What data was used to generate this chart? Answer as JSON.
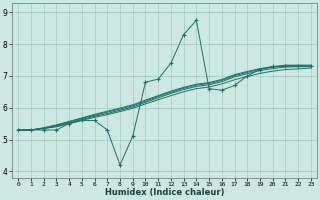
{
  "xlabel": "Humidex (Indice chaleur)",
  "bg_color": "#cce8e0",
  "grid_color": "#aad0c8",
  "line_color": "#1a7068",
  "xlim": [
    -0.5,
    23.5
  ],
  "ylim": [
    3.8,
    9.3
  ],
  "xticks": [
    0,
    1,
    2,
    3,
    4,
    5,
    6,
    7,
    8,
    9,
    10,
    11,
    12,
    13,
    14,
    15,
    16,
    17,
    18,
    19,
    20,
    21,
    22,
    23
  ],
  "yticks": [
    4,
    5,
    6,
    7,
    8,
    9
  ],
  "jagged_x": [
    0,
    1,
    2,
    3,
    4,
    5,
    6,
    7,
    8,
    9,
    10,
    11,
    12,
    13,
    14,
    15,
    16,
    17,
    18,
    19,
    20,
    21,
    22,
    23
  ],
  "jagged_y": [
    5.3,
    5.3,
    5.3,
    5.3,
    5.5,
    5.6,
    5.6,
    5.3,
    4.2,
    5.1,
    6.8,
    6.9,
    7.4,
    8.3,
    8.75,
    6.6,
    6.55,
    6.7,
    7.0,
    7.2,
    7.3,
    7.3,
    7.3,
    7.3
  ],
  "smooth_lines": [
    [
      5.3,
      5.3,
      5.35,
      5.4,
      5.5,
      5.6,
      5.7,
      5.78,
      5.88,
      5.98,
      6.12,
      6.25,
      6.38,
      6.5,
      6.6,
      6.65,
      6.75,
      6.88,
      6.98,
      7.08,
      7.15,
      7.2,
      7.22,
      7.25
    ],
    [
      5.3,
      5.3,
      5.34,
      5.42,
      5.52,
      5.63,
      5.73,
      5.82,
      5.92,
      6.02,
      6.17,
      6.31,
      6.45,
      6.57,
      6.67,
      6.72,
      6.82,
      6.97,
      7.07,
      7.17,
      7.23,
      7.28,
      7.29,
      7.29
    ],
    [
      5.3,
      5.3,
      5.36,
      5.44,
      5.55,
      5.66,
      5.76,
      5.86,
      5.96,
      6.06,
      6.21,
      6.35,
      6.49,
      6.61,
      6.71,
      6.76,
      6.86,
      7.01,
      7.11,
      7.21,
      7.27,
      7.32,
      7.32,
      7.32
    ],
    [
      5.3,
      5.3,
      5.37,
      5.46,
      5.57,
      5.68,
      5.79,
      5.89,
      5.99,
      6.09,
      6.24,
      6.38,
      6.52,
      6.64,
      6.74,
      6.79,
      6.89,
      7.04,
      7.14,
      7.23,
      7.29,
      7.34,
      7.34,
      7.34
    ]
  ]
}
